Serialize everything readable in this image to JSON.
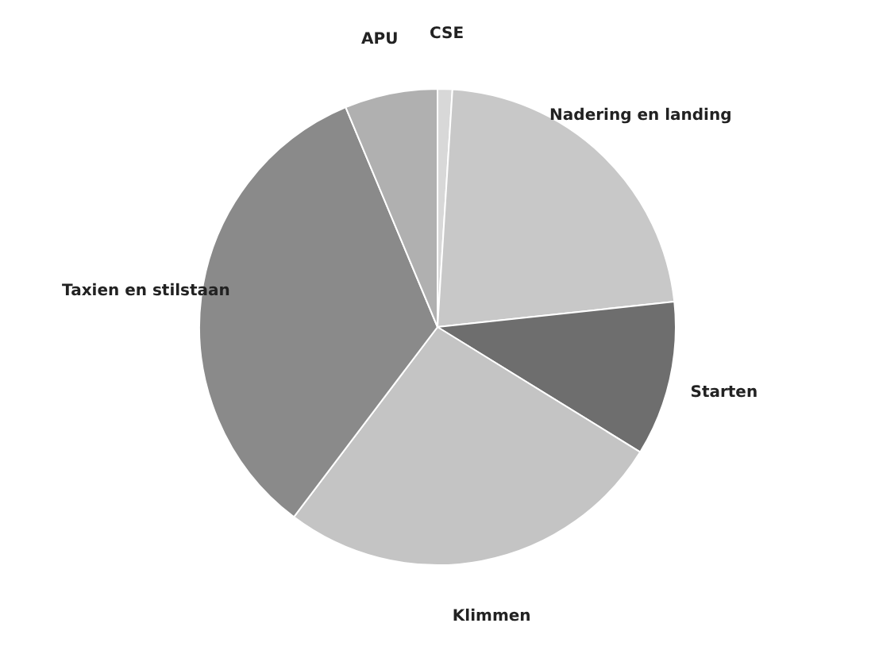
{
  "chart_data": {
    "type": "pie",
    "categories": [
      "CSE",
      "Nadering en landing",
      "Starten",
      "Klimmen",
      "Taxien en stilstaan",
      "APU"
    ],
    "values": [
      1.0,
      22.3,
      10.5,
      26.5,
      33.4,
      6.3
    ],
    "colors": [
      "#d8d8d8",
      "#c8c8c8",
      "#6e6e6e",
      "#c4c4c4",
      "#8a8a8a",
      "#b0b0b0"
    ],
    "legend": false
  }
}
